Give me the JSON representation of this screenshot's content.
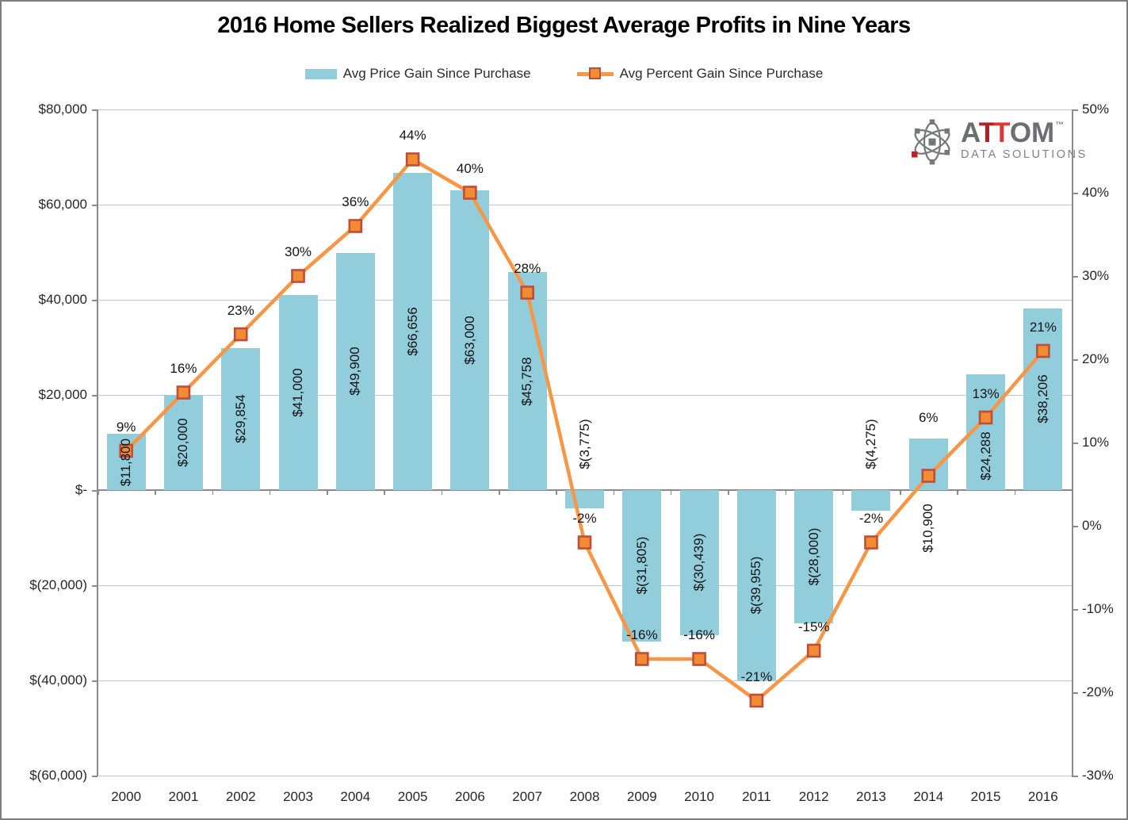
{
  "title": "2016 Home Sellers Realized Biggest Average Profits in Nine Years",
  "logo": {
    "brand_a": "A",
    "brand_t1": "T",
    "brand_t2": "T",
    "brand_om": "OM",
    "trademark": "TM",
    "subtitle": "DATA SOLUTIONS",
    "gray": "#6D6E71",
    "red_dark": "#B22025",
    "red_bright": "#DA3832"
  },
  "colors": {
    "bar_fill": "#92CDDC",
    "line": "#F79646",
    "marker_fill": "#F28C33",
    "marker_border": "#BE4E3B",
    "gridline": "#B9C7E2",
    "axis": "#8B8B8B",
    "text": "#262626",
    "background": "#FFFFFF"
  },
  "chart_data": {
    "type": "bar",
    "title": "2016 Home Sellers Realized Biggest Average Profits in Nine Years",
    "categories": [
      "2000",
      "2001",
      "2002",
      "2003",
      "2004",
      "2005",
      "2006",
      "2007",
      "2008",
      "2009",
      "2010",
      "2011",
      "2012",
      "2013",
      "2014",
      "2015",
      "2016"
    ],
    "series": [
      {
        "name": "Avg Price Gain Since Purchase",
        "type": "bar",
        "color": "#92CDDC",
        "values": [
          11800,
          20000,
          29854,
          41000,
          49900,
          66656,
          63000,
          45758,
          -3775,
          -31805,
          -30439,
          -39955,
          -28000,
          -4275,
          10900,
          24288,
          38206
        ],
        "data_labels": [
          "$11,800",
          "$20,000",
          "$29,854",
          "$41,000",
          "$49,900",
          "$66,656",
          "$63,000",
          "$45,758",
          "$(3,775)",
          "$(31,805)",
          "$(30,439)",
          "$(39,955)",
          "$(28,000)",
          "$(4,275)",
          "$10,900",
          "$24,288",
          "$38,206"
        ],
        "label_placement": [
          "center",
          "center",
          "center",
          "center",
          "center",
          "center",
          "center",
          "center",
          "outside_base",
          "center",
          "center",
          "center",
          "center",
          "outside_base",
          "outside_base",
          "center",
          "center"
        ],
        "label_dy": [
          0,
          0,
          0,
          0,
          0,
          0,
          0,
          0,
          0,
          0,
          0,
          0,
          0,
          0,
          0,
          30,
          0
        ]
      },
      {
        "name": "Avg Percent Gain Since Purchase",
        "type": "line",
        "color": "#F79646",
        "marker_fill": "#F28C33",
        "marker_border": "#BE4E3B",
        "values": [
          9,
          16,
          23,
          30,
          36,
          44,
          40,
          28,
          -2,
          -16,
          -16,
          -21,
          -15,
          -2,
          6,
          13,
          21
        ],
        "data_labels": [
          "9%",
          "16%",
          "23%",
          "30%",
          "36%",
          "44%",
          "40%",
          "28%",
          "-2%",
          "-16%",
          "-16%",
          "-21%",
          "-15%",
          "-2%",
          "6%",
          "13%",
          "21%"
        ],
        "label_dy": [
          0,
          0,
          0,
          0,
          0,
          0,
          0,
          0,
          0,
          0,
          0,
          0,
          0,
          0,
          -43,
          0,
          0
        ]
      }
    ],
    "left_axis": {
      "ticks": [
        "$80,000",
        "$60,000",
        "$40,000",
        "$20,000",
        "$-",
        "$(20,000)",
        "$(40,000)",
        "$(60,000)"
      ],
      "max": 80000,
      "min": -60000,
      "step": 20000
    },
    "right_axis": {
      "ticks": [
        "50%",
        "40%",
        "30%",
        "20%",
        "10%",
        "0%",
        "-10%",
        "-20%",
        "-30%"
      ],
      "max": 50,
      "min": -30,
      "step": 10
    },
    "gridlines": "horizontal",
    "legend_position": "top"
  }
}
